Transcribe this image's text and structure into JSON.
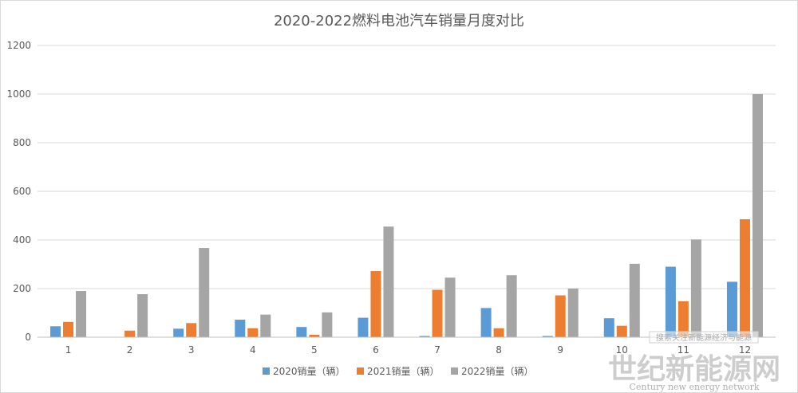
{
  "chart_data": {
    "type": "bar",
    "title": "2020-2022燃料电池汽车销量月度对比",
    "categories": [
      "1",
      "2",
      "3",
      "4",
      "5",
      "6",
      "7",
      "8",
      "9",
      "10",
      "11",
      "12"
    ],
    "series": [
      {
        "name": "2020销量（辆）",
        "color": "#5B9BD5",
        "values": [
          45,
          0,
          35,
          72,
          42,
          80,
          5,
          120,
          5,
          78,
          290,
          228
        ]
      },
      {
        "name": "2021销量（辆）",
        "color": "#ED7D31",
        "values": [
          63,
          27,
          58,
          37,
          10,
          272,
          195,
          37,
          172,
          47,
          148,
          485
        ]
      },
      {
        "name": "2022销量（辆）",
        "color": "#A5A5A5",
        "values": [
          190,
          177,
          367,
          93,
          102,
          455,
          245,
          255,
          200,
          302,
          402,
          1000
        ]
      }
    ],
    "y_ticks": [
      "0",
      "200",
      "400",
      "600",
      "800",
      "1000",
      "1200"
    ],
    "ylim": [
      0,
      1200
    ],
    "grid": true,
    "legend_position": "bottom"
  },
  "watermark": {
    "caption": "搜索关注新能源经济与能源",
    "text_cn": "世纪新能源网",
    "text_en": "Century new energy network"
  }
}
